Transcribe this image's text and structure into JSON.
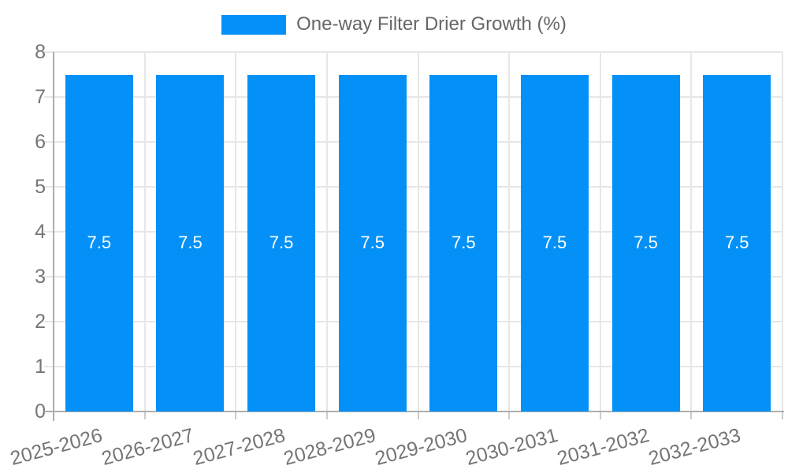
{
  "legend": {
    "label": "One-way Filter Drier Growth (%)"
  },
  "chart_data": {
    "type": "bar",
    "title": "",
    "xlabel": "",
    "ylabel": "",
    "categories": [
      "2025-2026",
      "2026-2027",
      "2027-2028",
      "2028-2029",
      "2029-2030",
      "2030-2031",
      "2031-2032",
      "2032-2033"
    ],
    "series": [
      {
        "name": "One-way Filter Drier Growth (%)",
        "values": [
          7.5,
          7.5,
          7.5,
          7.5,
          7.5,
          7.5,
          7.5,
          7.5
        ]
      }
    ],
    "value_labels": [
      "7.5",
      "7.5",
      "7.5",
      "7.5",
      "7.5",
      "7.5",
      "7.5",
      "7.5"
    ],
    "ylim": [
      0,
      8
    ],
    "yticks": [
      "0",
      "1",
      "2",
      "3",
      "4",
      "5",
      "6",
      "7",
      "8"
    ],
    "grid": true,
    "legend_position": "top",
    "x_tick_rotation_deg": -15,
    "colors": {
      "bar": "#0391F7",
      "grid": "#e7e7e7",
      "axis": "#aeaeae",
      "minor_tick": "#cccccc",
      "tick_label": "#757575",
      "legend_text": "#666666",
      "bar_label": "#ffffff",
      "background": "#ffffff"
    }
  }
}
